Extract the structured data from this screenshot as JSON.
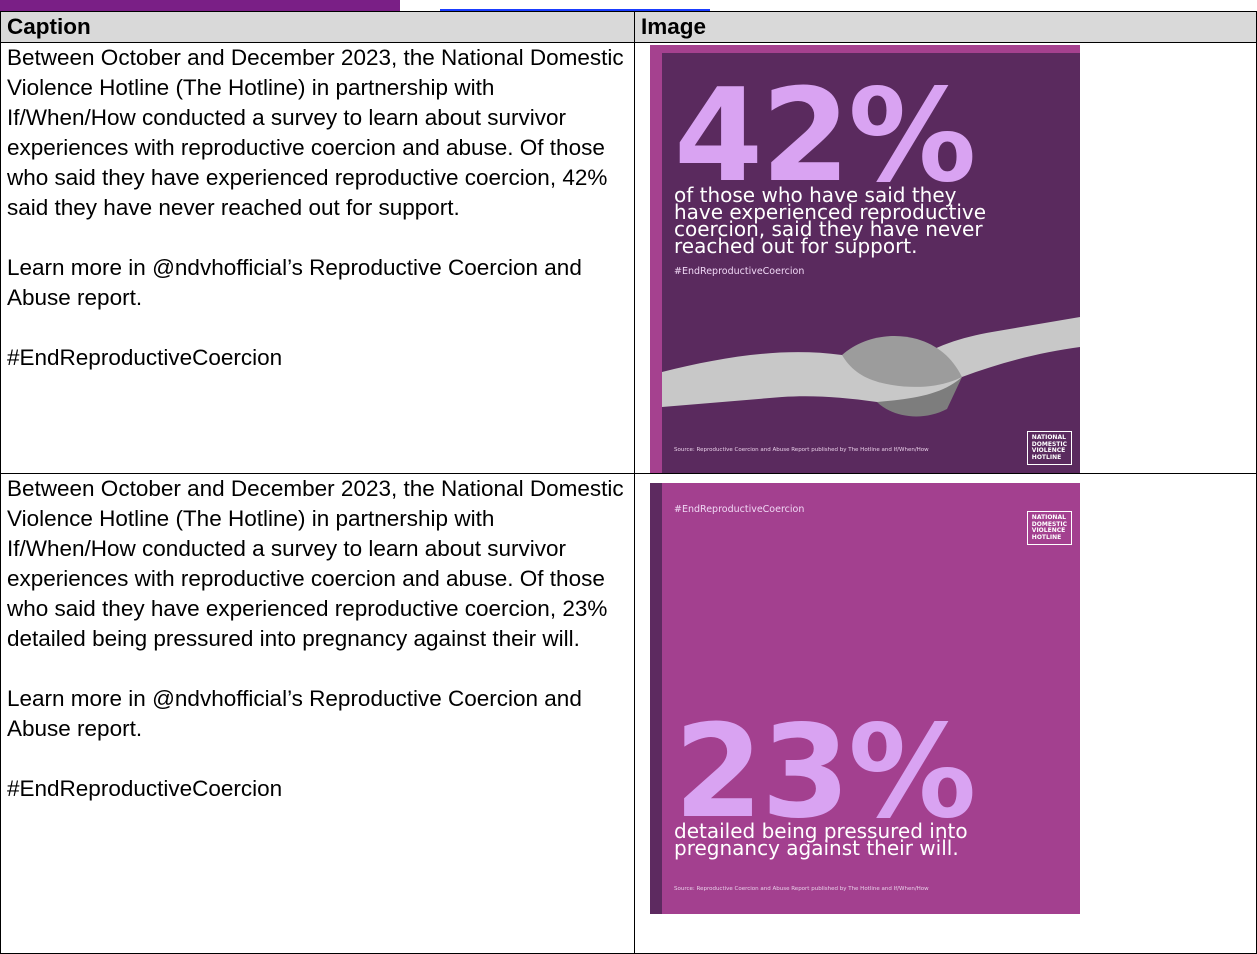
{
  "table": {
    "columns": [
      "Caption",
      "Image"
    ],
    "rows": [
      {
        "caption": [
          "Between October and December 2023, the National Domestic Violence Hotline (The Hotline) in partnership with If/When/How conducted a survey to learn about survivor experiences with reproductive coercion and abuse. Of those who said they have experienced reproductive coercion, 42% said they have never reached out for support.",
          "Learn more in @ndvhofficial’s Reproductive Coercion and Abuse report.",
          "#EndReproductiveCoercion"
        ],
        "image": {
          "stat": "42%",
          "lines": [
            "of those who have said they",
            "have experienced reproductive",
            "coercion, said they have never",
            "reached out for support."
          ],
          "hashtag": "#EndReproductiveCoercion",
          "source": "Source: Reproductive Coercion and Abuse Report published by The Hotline and If/When/How",
          "logo": [
            "NATIONAL",
            "DOMESTIC",
            "VIOLENCE",
            "HOTLINE"
          ]
        }
      },
      {
        "caption": [
          "Between October and December 2023, the National Domestic Violence Hotline (The Hotline) in partnership with If/When/How conducted a survey to learn about survivor experiences with reproductive coercion and abuse. Of those who said they have experienced reproductive coercion, 23% detailed being pressured into pregnancy against their will.",
          "Learn more in @ndvhofficial’s Reproductive Coercion and Abuse report.",
          "#EndReproductiveCoercion"
        ],
        "image": {
          "stat": "23%",
          "lines": [
            "detailed being pressured into",
            "pregnancy against their will."
          ],
          "hashtag": "#EndReproductiveCoercion",
          "source": "Source: Reproductive Coercion and Abuse Report published by The Hotline and If/When/How",
          "logo": [
            "NATIONAL",
            "DOMESTIC",
            "VIOLENCE",
            "HOTLINE"
          ]
        }
      }
    ]
  }
}
